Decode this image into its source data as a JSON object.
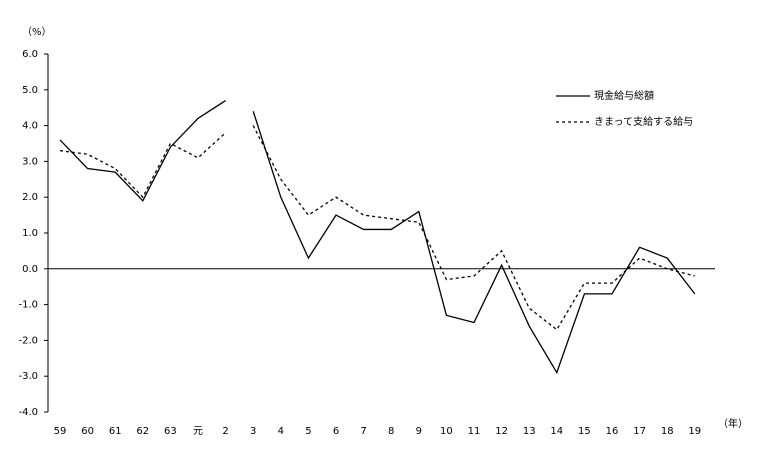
{
  "chart_data": {
    "type": "line",
    "y_unit_label": "（%）",
    "x_unit_label": "（年）",
    "categories": [
      "59",
      "60",
      "61",
      "62",
      "63",
      "元",
      "2",
      "3",
      "4",
      "5",
      "6",
      "7",
      "8",
      "9",
      "10",
      "11",
      "12",
      "13",
      "14",
      "15",
      "16",
      "17",
      "18",
      "19"
    ],
    "breaks": [
      7
    ],
    "series": [
      {
        "name": "現金給与総額",
        "color": "#000000",
        "dash": "solid",
        "values": [
          3.6,
          2.8,
          2.7,
          1.9,
          3.4,
          4.2,
          4.7,
          4.4,
          2.0,
          0.3,
          1.5,
          1.1,
          1.1,
          1.6,
          -1.3,
          -1.5,
          0.1,
          -1.6,
          -2.9,
          -0.7,
          -0.7,
          0.6,
          0.3,
          -0.7
        ]
      },
      {
        "name": "きまって支給する給与",
        "color": "#000000",
        "dash": "dotted",
        "values": [
          3.3,
          3.2,
          2.8,
          2.0,
          3.5,
          3.1,
          3.8,
          4.0,
          2.5,
          1.5,
          2.0,
          1.5,
          1.4,
          1.3,
          -0.3,
          -0.2,
          0.5,
          -1.1,
          -1.7,
          -0.4,
          -0.4,
          0.3,
          0.0,
          -0.2
        ]
      }
    ],
    "ylim": [
      -4,
      6
    ],
    "yticks": [
      {
        "value": -4,
        "label": "-4.0"
      },
      {
        "value": -3,
        "label": "-3.0"
      },
      {
        "value": -2,
        "label": "-2.0"
      },
      {
        "value": -1,
        "label": "-1.0"
      },
      {
        "value": 0,
        "label": "0.0"
      },
      {
        "value": 1,
        "label": "1.0"
      },
      {
        "value": 2,
        "label": "2.0"
      },
      {
        "value": 3,
        "label": "3.0"
      },
      {
        "value": 4,
        "label": "4.0"
      },
      {
        "value": 5,
        "label": "5.0"
      },
      {
        "value": 6,
        "label": "6.0"
      }
    ],
    "zero_line": true
  }
}
